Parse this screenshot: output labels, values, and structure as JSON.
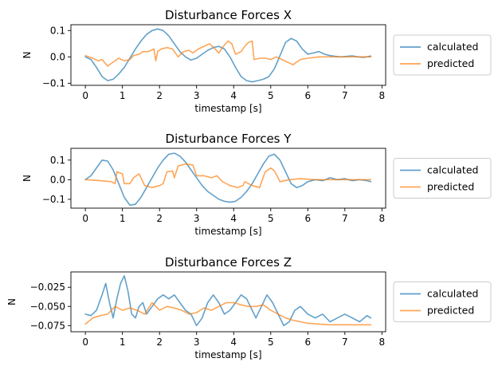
{
  "chart_data": [
    {
      "type": "line",
      "title": "Disturbance Forces X",
      "xlabel": "timestamp [s]",
      "ylabel": "N",
      "xlim": [
        -0.39,
        8.1
      ],
      "ylim": [
        -0.108,
        0.122
      ],
      "xticks": [
        0,
        1,
        2,
        3,
        4,
        5,
        6,
        7,
        8
      ],
      "yticks": [
        -0.1,
        0.0,
        0.1
      ],
      "ytick_labels": [
        "−0.1",
        "0.0",
        "0.1"
      ],
      "legend_position": "outside-right",
      "series": [
        {
          "name": "calculated",
          "color": "#1f77b4",
          "x": [
            0.0,
            0.15,
            0.3,
            0.45,
            0.6,
            0.75,
            0.9,
            1.05,
            1.2,
            1.35,
            1.5,
            1.65,
            1.8,
            1.95,
            2.1,
            2.25,
            2.4,
            2.55,
            2.7,
            2.85,
            3.0,
            3.15,
            3.3,
            3.45,
            3.6,
            3.75,
            3.9,
            4.05,
            4.2,
            4.35,
            4.5,
            4.65,
            4.8,
            4.95,
            5.1,
            5.25,
            5.4,
            5.55,
            5.7,
            5.85,
            6.0,
            6.15,
            6.3,
            6.45,
            6.6,
            6.75,
            6.9,
            7.05,
            7.2,
            7.35,
            7.5,
            7.7
          ],
          "values": [
            0.0,
            -0.01,
            -0.04,
            -0.075,
            -0.09,
            -0.085,
            -0.065,
            -0.04,
            -0.005,
            0.03,
            0.06,
            0.085,
            0.1,
            0.106,
            0.1,
            0.08,
            0.05,
            0.02,
            0.0,
            -0.012,
            -0.005,
            0.01,
            0.025,
            0.035,
            0.04,
            0.03,
            0.0,
            -0.04,
            -0.075,
            -0.09,
            -0.095,
            -0.09,
            -0.085,
            -0.075,
            -0.045,
            0.005,
            0.055,
            0.07,
            0.06,
            0.03,
            0.01,
            0.015,
            0.02,
            0.01,
            0.005,
            0.002,
            0.0,
            0.002,
            0.004,
            0.0,
            -0.002,
            0.003
          ]
        },
        {
          "name": "predicted",
          "color": "#ff7f0e",
          "x": [
            0.0,
            0.2,
            0.35,
            0.45,
            0.6,
            0.75,
            0.9,
            1.05,
            1.2,
            1.3,
            1.45,
            1.55,
            1.7,
            1.85,
            1.9,
            1.95,
            2.05,
            2.2,
            2.35,
            2.5,
            2.65,
            2.8,
            2.9,
            3.05,
            3.2,
            3.35,
            3.5,
            3.6,
            3.75,
            3.85,
            3.95,
            4.05,
            4.2,
            4.3,
            4.4,
            4.5,
            4.55,
            4.7,
            4.85,
            5.0,
            5.15,
            5.3,
            5.45,
            5.6,
            5.8,
            6.0,
            6.3,
            6.6,
            7.0,
            7.4,
            7.7
          ],
          "values": [
            0.005,
            -0.005,
            -0.015,
            -0.01,
            -0.035,
            -0.02,
            -0.005,
            -0.015,
            -0.01,
            0.005,
            0.01,
            0.02,
            0.02,
            0.03,
            -0.015,
            0.02,
            0.03,
            0.035,
            0.03,
            0.0,
            0.02,
            0.025,
            0.015,
            0.03,
            0.04,
            0.05,
            0.03,
            0.015,
            0.045,
            0.06,
            0.05,
            0.01,
            0.02,
            0.04,
            0.055,
            0.06,
            -0.01,
            -0.005,
            -0.005,
            -0.01,
            0.0,
            -0.01,
            -0.02,
            -0.03,
            -0.01,
            -0.005,
            0.0,
            0.0,
            0.0,
            0.0,
            0.0
          ]
        }
      ]
    },
    {
      "type": "line",
      "title": "Disturbance Forces Y",
      "xlabel": "timestamp [s]",
      "ylabel": "N",
      "xlim": [
        -0.39,
        8.1
      ],
      "ylim": [
        -0.145,
        0.16
      ],
      "xticks": [
        0,
        1,
        2,
        3,
        4,
        5,
        6,
        7,
        8
      ],
      "yticks": [
        -0.1,
        0.0,
        0.1
      ],
      "ytick_labels": [
        "−0.1",
        "0.0",
        "0.1"
      ],
      "legend_position": "outside-right",
      "series": [
        {
          "name": "calculated",
          "color": "#1f77b4",
          "x": [
            0.0,
            0.15,
            0.3,
            0.45,
            0.6,
            0.75,
            0.9,
            1.05,
            1.2,
            1.35,
            1.5,
            1.65,
            1.8,
            1.95,
            2.1,
            2.25,
            2.4,
            2.55,
            2.7,
            2.85,
            3.0,
            3.15,
            3.3,
            3.45,
            3.6,
            3.75,
            3.9,
            4.05,
            4.2,
            4.35,
            4.5,
            4.65,
            4.8,
            4.95,
            5.1,
            5.25,
            5.4,
            5.55,
            5.7,
            5.85,
            6.0,
            6.2,
            6.4,
            6.6,
            6.8,
            7.0,
            7.2,
            7.4,
            7.6,
            7.7
          ],
          "values": [
            0.0,
            0.02,
            0.06,
            0.1,
            0.095,
            0.05,
            -0.02,
            -0.09,
            -0.13,
            -0.125,
            -0.09,
            -0.04,
            0.01,
            0.06,
            0.1,
            0.13,
            0.135,
            0.12,
            0.09,
            0.05,
            0.01,
            -0.03,
            -0.06,
            -0.08,
            -0.1,
            -0.11,
            -0.115,
            -0.11,
            -0.09,
            -0.06,
            -0.02,
            0.03,
            0.08,
            0.12,
            0.13,
            0.1,
            0.04,
            -0.02,
            -0.04,
            -0.03,
            -0.01,
            0.0,
            -0.005,
            0.01,
            0.0,
            0.005,
            -0.005,
            0.0,
            -0.005,
            -0.01
          ]
        },
        {
          "name": "predicted",
          "color": "#ff7f0e",
          "x": [
            0.0,
            0.4,
            0.7,
            0.8,
            0.85,
            1.0,
            1.05,
            1.2,
            1.3,
            1.45,
            1.6,
            1.8,
            2.0,
            2.1,
            2.2,
            2.35,
            2.4,
            2.5,
            2.7,
            2.9,
            3.0,
            3.2,
            3.4,
            3.55,
            3.7,
            3.9,
            4.1,
            4.25,
            4.3,
            4.5,
            4.7,
            4.85,
            5.0,
            5.1,
            5.25,
            5.5,
            5.8,
            6.2,
            6.6,
            7.0,
            7.4,
            7.7
          ],
          "values": [
            0.0,
            -0.005,
            -0.01,
            -0.02,
            0.04,
            0.03,
            -0.02,
            -0.02,
            0.01,
            0.03,
            -0.03,
            -0.04,
            -0.03,
            -0.02,
            0.04,
            0.045,
            0.01,
            0.07,
            0.08,
            0.075,
            0.02,
            0.02,
            0.01,
            0.02,
            -0.01,
            -0.03,
            -0.04,
            -0.03,
            -0.01,
            -0.03,
            -0.04,
            0.04,
            0.06,
            0.045,
            -0.01,
            0.0,
            0.005,
            0.0,
            0.0,
            0.0,
            0.0,
            0.0
          ]
        }
      ]
    },
    {
      "type": "line",
      "title": "Disturbance Forces Z",
      "xlabel": "timestamp [s]",
      "ylabel": "N",
      "xlim": [
        -0.39,
        8.1
      ],
      "ylim": [
        -0.083,
        -0.005
      ],
      "xticks": [
        0,
        1,
        2,
        3,
        4,
        5,
        6,
        7,
        8
      ],
      "yticks": [
        -0.075,
        -0.05,
        -0.025
      ],
      "ytick_labels": [
        "−0.075",
        "−0.050",
        "−0.025"
      ],
      "legend_position": "outside-right",
      "series": [
        {
          "name": "calculated",
          "color": "#1f77b4",
          "x": [
            0.0,
            0.15,
            0.3,
            0.45,
            0.55,
            0.65,
            0.75,
            0.85,
            0.95,
            1.05,
            1.15,
            1.25,
            1.35,
            1.45,
            1.55,
            1.65,
            1.8,
            1.95,
            2.1,
            2.25,
            2.4,
            2.55,
            2.7,
            2.85,
            3.0,
            3.15,
            3.3,
            3.45,
            3.6,
            3.75,
            3.9,
            4.05,
            4.2,
            4.35,
            4.5,
            4.6,
            4.75,
            4.9,
            5.05,
            5.2,
            5.35,
            5.5,
            5.65,
            5.8,
            6.0,
            6.2,
            6.4,
            6.6,
            6.8,
            7.0,
            7.2,
            7.4,
            7.6,
            7.7
          ],
          "values": [
            -0.06,
            -0.062,
            -0.055,
            -0.035,
            -0.02,
            -0.045,
            -0.065,
            -0.04,
            -0.02,
            -0.01,
            -0.03,
            -0.06,
            -0.065,
            -0.05,
            -0.045,
            -0.06,
            -0.05,
            -0.04,
            -0.035,
            -0.04,
            -0.035,
            -0.045,
            -0.055,
            -0.06,
            -0.075,
            -0.065,
            -0.045,
            -0.035,
            -0.045,
            -0.06,
            -0.055,
            -0.045,
            -0.035,
            -0.04,
            -0.055,
            -0.065,
            -0.05,
            -0.035,
            -0.045,
            -0.06,
            -0.075,
            -0.07,
            -0.055,
            -0.05,
            -0.06,
            -0.065,
            -0.06,
            -0.07,
            -0.065,
            -0.06,
            -0.065,
            -0.07,
            -0.062,
            -0.065
          ]
        },
        {
          "name": "predicted",
          "color": "#ff7f0e",
          "x": [
            0.0,
            0.2,
            0.4,
            0.6,
            0.8,
            1.0,
            1.2,
            1.4,
            1.6,
            1.8,
            2.0,
            2.2,
            2.4,
            2.6,
            2.8,
            3.0,
            3.2,
            3.4,
            3.6,
            3.8,
            4.0,
            4.2,
            4.4,
            4.6,
            4.8,
            5.0,
            5.2,
            5.4,
            5.6,
            5.8,
            6.0,
            6.3,
            6.6,
            7.0,
            7.4,
            7.7
          ],
          "values": [
            -0.073,
            -0.065,
            -0.062,
            -0.06,
            -0.05,
            -0.055,
            -0.052,
            -0.055,
            -0.06,
            -0.045,
            -0.055,
            -0.05,
            -0.052,
            -0.055,
            -0.06,
            -0.058,
            -0.052,
            -0.055,
            -0.05,
            -0.045,
            -0.045,
            -0.048,
            -0.05,
            -0.05,
            -0.048,
            -0.055,
            -0.06,
            -0.065,
            -0.068,
            -0.07,
            -0.072,
            -0.073,
            -0.074,
            -0.074,
            -0.074,
            -0.074
          ]
        }
      ]
    }
  ]
}
